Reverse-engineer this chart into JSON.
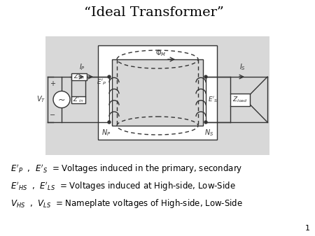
{
  "title": "“Ideal Transformer”",
  "title_fontsize": 14,
  "bg_color": "#ffffff",
  "diagram_bg": "#dcdcdc",
  "dark": "#333333",
  "lw": 1.0,
  "text_fontsize": 8.5,
  "slide_number": "1"
}
